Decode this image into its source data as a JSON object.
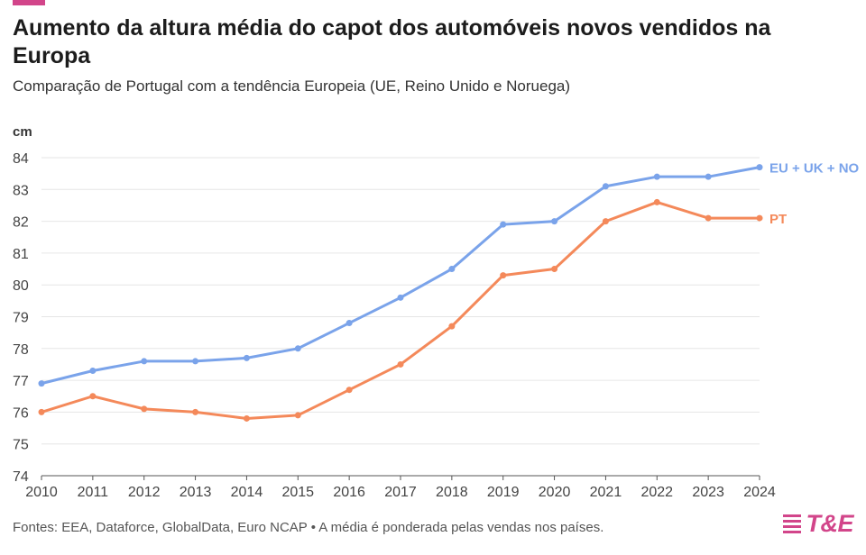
{
  "header": {
    "title": "Aumento da altura média do capot dos automóveis novos vendidos na Europa",
    "subtitle": "Comparação de Portugal com a tendência Europeia (UE, Reino Unido e Noruega)"
  },
  "footer": {
    "source": "Fontes: EEA, Dataforce, GlobalData, Euro NCAP • A média é ponderada pelas vendas nos países."
  },
  "logo": {
    "text": "T&E",
    "color": "#d2458a"
  },
  "chart_data": {
    "type": "line",
    "ylabel": "cm",
    "x": [
      2010,
      2011,
      2012,
      2013,
      2014,
      2015,
      2016,
      2017,
      2018,
      2019,
      2020,
      2021,
      2022,
      2023,
      2024
    ],
    "ylim": [
      74,
      84
    ],
    "yticks": [
      74,
      75,
      76,
      77,
      78,
      79,
      80,
      81,
      82,
      83,
      84
    ],
    "grid": true,
    "legend": "direct labels at line ends",
    "series": [
      {
        "name": "EU + UK + NO",
        "color": "#7aa3ea",
        "values": [
          76.9,
          77.3,
          77.6,
          77.6,
          77.7,
          78.0,
          78.8,
          79.6,
          80.5,
          81.9,
          82.0,
          83.1,
          83.4,
          83.4,
          83.7
        ]
      },
      {
        "name": "PT",
        "color": "#f4895a",
        "values": [
          76.0,
          76.5,
          76.1,
          76.0,
          75.8,
          75.9,
          76.7,
          77.5,
          78.7,
          80.3,
          80.5,
          82.0,
          82.6,
          82.1,
          82.1
        ]
      }
    ]
  }
}
